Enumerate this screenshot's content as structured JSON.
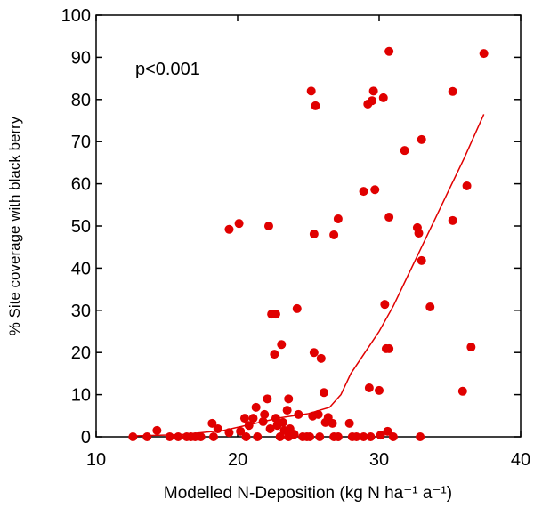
{
  "chart_data": {
    "type": "scatter",
    "x_label": "Modelled N-Deposition (kg N ha⁻¹ a⁻¹)",
    "y_label": "% Site coverage with black berry",
    "annotation": "p<0.001",
    "xlim": [
      10,
      40
    ],
    "xticks": [
      10,
      20,
      30,
      40
    ],
    "ylim": [
      0,
      100
    ],
    "yticks": [
      0,
      10,
      20,
      30,
      40,
      50,
      60,
      70,
      80,
      90,
      100
    ],
    "color": "#e00000",
    "x": [
      12.6,
      13.6,
      14.3,
      15.2,
      15.8,
      16.4,
      16.7,
      17.0,
      17.4,
      18.2,
      18.3,
      18.6,
      19.4,
      19.4,
      20.1,
      20.2,
      20.5,
      20.6,
      20.8,
      21.1,
      21.3,
      21.4,
      21.8,
      21.9,
      22.1,
      22.2,
      22.3,
      22.4,
      22.7,
      22.6,
      22.7,
      22.8,
      23.0,
      23.1,
      23.2,
      23.3,
      23.5,
      23.6,
      23.6,
      23.7,
      24.0,
      24.2,
      24.3,
      24.6,
      24.9,
      25.1,
      25.2,
      25.3,
      25.4,
      25.4,
      25.5,
      25.7,
      25.8,
      25.9,
      26.1,
      26.2,
      26.4,
      26.7,
      26.8,
      26.8,
      27.1,
      27.1,
      27.9,
      28.1,
      28.4,
      28.9,
      28.9,
      29.2,
      29.3,
      29.4,
      29.5,
      29.6,
      29.7,
      30.0,
      30.1,
      30.3,
      30.4,
      30.5,
      30.6,
      30.7,
      30.7,
      30.7,
      31.0,
      31.8,
      32.7,
      32.8,
      32.9,
      33.0,
      33.0,
      33.6,
      35.2,
      35.2,
      35.9,
      36.2,
      36.5,
      37.4
    ],
    "values": [
      0,
      0,
      1.5,
      0,
      0,
      0,
      0,
      0,
      0,
      3.2,
      0,
      1.9,
      1,
      49.2,
      50.6,
      1.3,
      4.4,
      0,
      2.7,
      4.4,
      7,
      0,
      3.6,
      5.3,
      9,
      50,
      1.9,
      29.1,
      29.1,
      19.6,
      4.4,
      2.7,
      0,
      21.9,
      3.4,
      1.5,
      6.3,
      0,
      9,
      1.9,
      0.6,
      30.4,
      5.3,
      0,
      0,
      0,
      82,
      4.9,
      20,
      48.1,
      78.5,
      5.3,
      0,
      18.6,
      10.5,
      3.4,
      4.6,
      3.2,
      0,
      47.9,
      51.7,
      0,
      3.2,
      0,
      0,
      0,
      58.2,
      78.9,
      11.6,
      0,
      79.7,
      82,
      58.6,
      11,
      0.4,
      80.4,
      31.4,
      20.9,
      1.3,
      20.9,
      91.4,
      52.1,
      0,
      67.9,
      49.6,
      48.3,
      0,
      41.8,
      70.5,
      30.8,
      81.9,
      51.3,
      10.8,
      59.5,
      21.3,
      90.9
    ],
    "fit": {
      "x": [
        12.6,
        16,
        19,
        21,
        23,
        25,
        26.5,
        27.3,
        28,
        29,
        30,
        31,
        32,
        33,
        34,
        35,
        36,
        37.4
      ],
      "values": [
        0.2,
        0.5,
        1.5,
        3,
        4.5,
        5.5,
        7,
        10,
        15,
        20,
        25,
        31,
        38,
        45,
        52,
        59,
        66,
        76.5
      ]
    }
  }
}
